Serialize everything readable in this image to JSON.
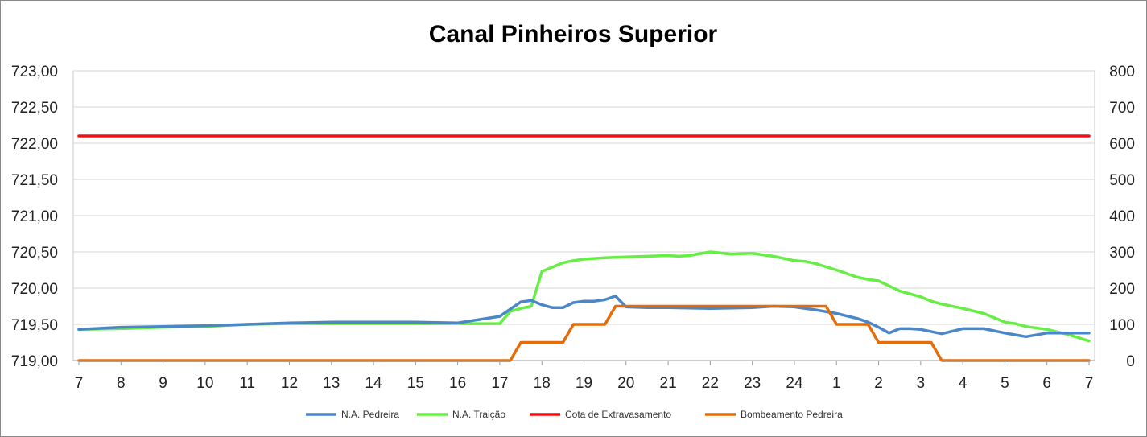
{
  "chart_data": {
    "type": "line",
    "title": "Canal Pinheiros Superior",
    "x_ticks": [
      "7",
      "8",
      "9",
      "10",
      "11",
      "12",
      "13",
      "14",
      "15",
      "16",
      "17",
      "18",
      "19",
      "20",
      "21",
      "22",
      "23",
      "24",
      "1",
      "2",
      "3",
      "4",
      "5",
      "6",
      "7"
    ],
    "y_left": {
      "min": 719.0,
      "max": 723.0,
      "ticks": [
        "719,00",
        "719,50",
        "720,00",
        "720,50",
        "721,00",
        "721,50",
        "722,00",
        "722,50",
        "723,00"
      ]
    },
    "y_right": {
      "min": 0,
      "max": 800,
      "ticks": [
        "0",
        "100",
        "200",
        "300",
        "400",
        "500",
        "600",
        "700",
        "800"
      ]
    },
    "grid": "horizontal",
    "legend_position": "bottom",
    "series": [
      {
        "name": "N.A. Pedreira",
        "axis": "left",
        "color": "#4a86c8",
        "x": [
          0,
          1,
          2,
          3,
          4,
          5,
          6,
          7,
          8,
          9,
          10,
          10.5,
          10.75,
          11,
          11.25,
          11.5,
          11.75,
          12,
          12.25,
          12.5,
          12.75,
          13,
          13.5,
          14,
          15,
          16,
          16.5,
          17,
          17.5,
          18,
          18.5,
          18.75,
          19,
          19.25,
          19.5,
          19.75,
          20,
          20.5,
          21,
          21.5,
          22,
          22.5,
          23,
          23.5,
          24
        ],
        "y": [
          719.43,
          719.46,
          719.47,
          719.48,
          719.5,
          719.52,
          719.53,
          719.53,
          719.53,
          719.52,
          719.61,
          719.81,
          719.83,
          719.77,
          719.73,
          719.73,
          719.8,
          719.82,
          719.82,
          719.84,
          719.89,
          719.74,
          719.73,
          719.73,
          719.72,
          719.73,
          719.75,
          719.74,
          719.7,
          719.65,
          719.58,
          719.53,
          719.46,
          719.38,
          719.44,
          719.44,
          719.43,
          719.37,
          719.44,
          719.44,
          719.38,
          719.33,
          719.38,
          719.38,
          719.38
        ]
      },
      {
        "name": "N.A. Traição",
        "axis": "left",
        "color": "#66ee44",
        "x": [
          0,
          1,
          2,
          3,
          4,
          5,
          6,
          7,
          8,
          9,
          10,
          10.25,
          10.5,
          10.75,
          11,
          11.25,
          11.5,
          11.75,
          12,
          12.5,
          13,
          14,
          14.25,
          14.5,
          15,
          15.5,
          16,
          16.25,
          16.5,
          17,
          17.25,
          17.5,
          18,
          18.5,
          18.75,
          19,
          19.5,
          20,
          20.25,
          20.5,
          21,
          21.5,
          22,
          22.25,
          22.5,
          23,
          23.5,
          24
        ],
        "y": [
          719.43,
          719.44,
          719.46,
          719.47,
          719.5,
          719.51,
          719.51,
          719.51,
          719.51,
          719.51,
          719.51,
          719.68,
          719.72,
          719.75,
          720.23,
          720.29,
          720.35,
          720.38,
          720.4,
          720.42,
          720.43,
          720.45,
          720.44,
          720.45,
          720.5,
          720.47,
          720.48,
          720.46,
          720.44,
          720.38,
          720.37,
          720.34,
          720.25,
          720.15,
          720.12,
          720.1,
          719.96,
          719.88,
          719.82,
          719.78,
          719.72,
          719.65,
          719.53,
          719.51,
          719.47,
          719.43,
          719.36,
          719.27
        ]
      },
      {
        "name": "Cota de Extravasamento",
        "axis": "left",
        "color": "#ee1111",
        "x": [
          0,
          24
        ],
        "y": [
          722.1,
          722.1
        ]
      },
      {
        "name": "Bombeamento Pedreira",
        "axis": "right",
        "color": "#e46c0a",
        "step": true,
        "x": [
          0,
          10.25,
          10.5,
          11.5,
          11.75,
          12.5,
          12.75,
          13,
          17.75,
          18,
          18.75,
          19,
          20.25,
          20.5,
          22.5,
          22.75,
          23.75,
          24
        ],
        "y": [
          0,
          0,
          50,
          50,
          100,
          100,
          150,
          150,
          150,
          100,
          100,
          50,
          50,
          0,
          0,
          0,
          0,
          0
        ]
      }
    ]
  }
}
